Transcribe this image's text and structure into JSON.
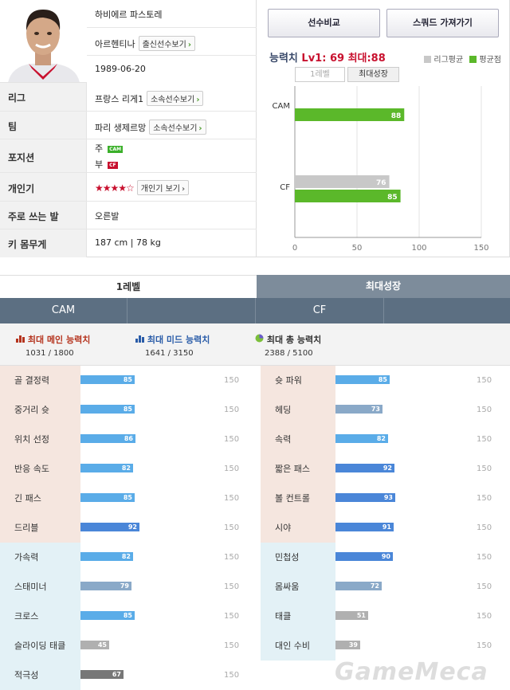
{
  "profile": {
    "name": "하비에르 파스토레",
    "nation": "아르헨티나",
    "nation_btn": "출신선수보기",
    "birth": "1989-06-20",
    "rows": [
      {
        "label": "리그",
        "value": "프랑스 리게1",
        "btn": "소속선수보기"
      },
      {
        "label": "팀",
        "value": "파리 생제르망",
        "btn": "소속선수보기"
      },
      {
        "label": "포지션"
      },
      {
        "label": "개인기",
        "btn": "개인기 보기"
      },
      {
        "label": "주로 쓰는 발",
        "value": "오른발"
      },
      {
        "label": "키 몸무게",
        "value": "187 cm | 78 kg"
      }
    ],
    "positions": [
      {
        "kind": "주",
        "pos": "CAM",
        "color": "#3bb02a"
      },
      {
        "kind": "부",
        "pos": "CF",
        "color": "#c8102e"
      }
    ],
    "stars": "★★★★☆"
  },
  "buttons": {
    "compare": "선수비교",
    "squad": "스쿼드 가져가기"
  },
  "ability": {
    "label": "능력치",
    "value": "Lv1: 69 최대:88"
  },
  "legend": {
    "league": "리그평균",
    "avg": "평균점",
    "league_color": "#c8c8c8",
    "avg_color": "#5bb82a"
  },
  "small_tabs": [
    "1레벨",
    "최대성장"
  ],
  "chart_data": {
    "type": "bar",
    "orientation": "horizontal",
    "categories": [
      "CAM",
      "CF"
    ],
    "series": [
      {
        "name": "리그평균",
        "values": [
          0,
          76
        ],
        "color": "#c8c8c8"
      },
      {
        "name": "평균점",
        "values": [
          88,
          85
        ],
        "color": "#5bb82a"
      }
    ],
    "xlim": [
      0,
      150
    ],
    "xticks": [
      0,
      50,
      100,
      150
    ],
    "grid": true
  },
  "big_tabs": [
    "1레벨",
    "최대성장"
  ],
  "pos_tabs": [
    "CAM",
    "CF"
  ],
  "summary": [
    {
      "title": "최대 메인 능력치",
      "value": "1031 / 1800",
      "color": "#b5341e",
      "icon": "bar-chart-icon"
    },
    {
      "title": "최대 미드 능력치",
      "value": "1641 / 3150",
      "color": "#2a5ca8",
      "icon": "bar-chart-icon"
    },
    {
      "title": "최대 총 능력치",
      "value": "2388 / 5100",
      "color": "#333333",
      "icon": "pie-chart-icon"
    }
  ],
  "stat_max": "150",
  "stats_left": [
    {
      "name": "골 결정력",
      "value": 85,
      "group": "main"
    },
    {
      "name": "중거리 슛",
      "value": 85,
      "group": "main"
    },
    {
      "name": "위치 선정",
      "value": 86,
      "group": "main"
    },
    {
      "name": "반응 속도",
      "value": 82,
      "group": "main"
    },
    {
      "name": "긴 패스",
      "value": 85,
      "group": "main"
    },
    {
      "name": "드리블",
      "value": 92,
      "group": "main"
    },
    {
      "name": "가속력",
      "value": 82,
      "group": "mid"
    },
    {
      "name": "스태미너",
      "value": 79,
      "group": "mid"
    },
    {
      "name": "크로스",
      "value": 85,
      "group": "mid"
    },
    {
      "name": "슬라이딩 태클",
      "value": 45,
      "group": "mid"
    },
    {
      "name": "적극성",
      "value": 67,
      "group": "mid"
    }
  ],
  "stats_right": [
    {
      "name": "슛 파워",
      "value": 85,
      "group": "main"
    },
    {
      "name": "헤딩",
      "value": 73,
      "group": "main"
    },
    {
      "name": "속력",
      "value": 82,
      "group": "main"
    },
    {
      "name": "짧은 패스",
      "value": 92,
      "group": "main"
    },
    {
      "name": "볼 컨트롤",
      "value": 93,
      "group": "main"
    },
    {
      "name": "시야",
      "value": 91,
      "group": "main"
    },
    {
      "name": "민첩성",
      "value": 90,
      "group": "mid"
    },
    {
      "name": "몸싸움",
      "value": 72,
      "group": "mid"
    },
    {
      "name": "태클",
      "value": 51,
      "group": "mid"
    },
    {
      "name": "대인 수비",
      "value": 39,
      "group": "mid"
    }
  ],
  "watermark": "GameMeca"
}
